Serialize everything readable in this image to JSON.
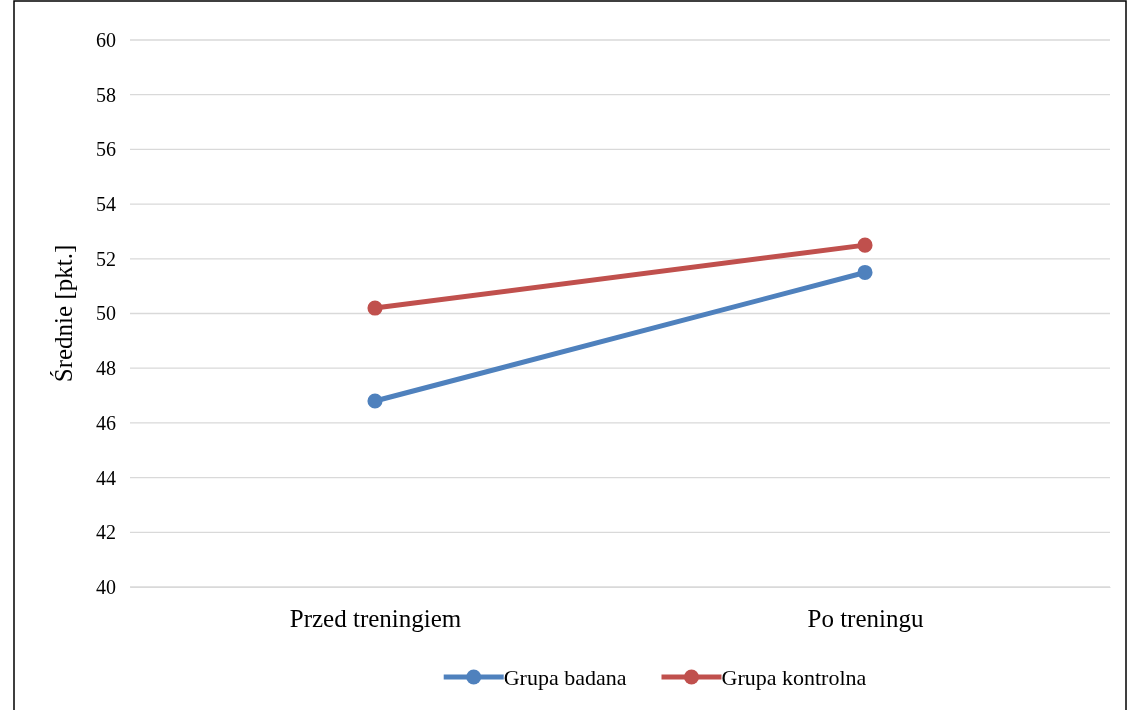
{
  "chart_data": {
    "type": "line",
    "ylabel": "Średnie [pkt.]",
    "categories": [
      "Przed treningiem",
      "Po treningu"
    ],
    "series": [
      {
        "name": "Grupa badana",
        "color": "#4f81bd",
        "values": [
          46.8,
          51.5
        ]
      },
      {
        "name": "Grupa kontrolna",
        "color": "#c0504d",
        "values": [
          50.2,
          52.5
        ]
      }
    ],
    "ylim": [
      40,
      60
    ],
    "yticks": [
      40,
      42,
      44,
      46,
      48,
      50,
      52,
      54,
      56,
      58,
      60
    ],
    "grid": "y",
    "legend": "bottom",
    "marker": "circle",
    "line_style": "solid"
  }
}
